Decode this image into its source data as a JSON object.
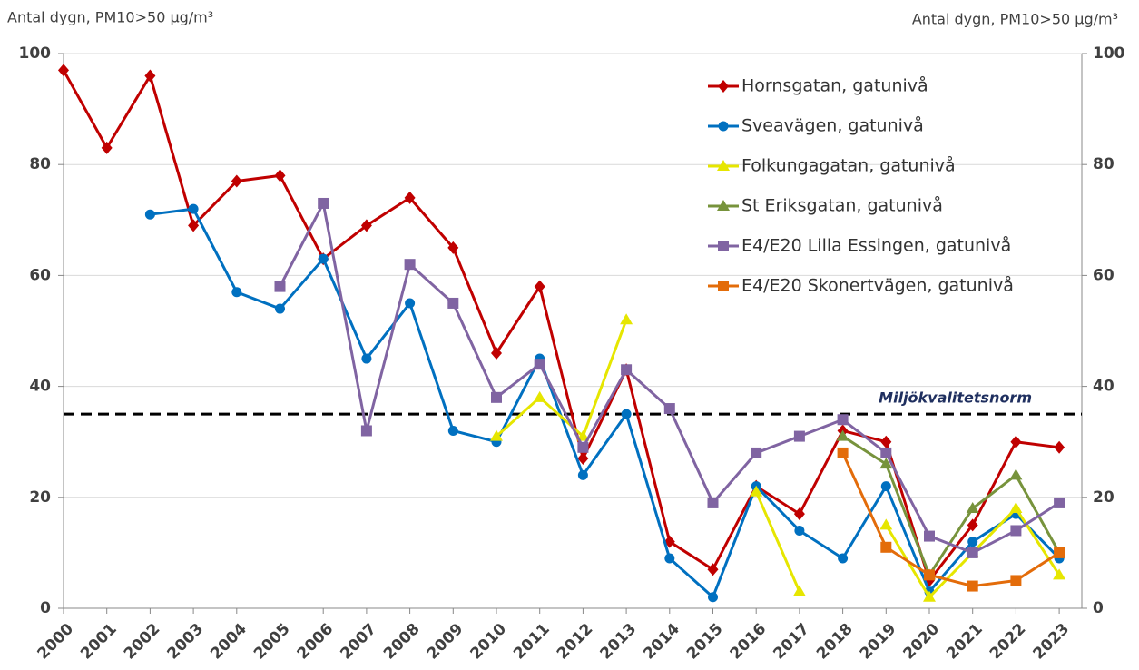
{
  "chart_data": {
    "type": "line",
    "y_label": "Antal dygn, PM10>50 µg/m³",
    "y2_label": "Antal dygn, PM10>50 µg/m³",
    "categories": [
      "2000",
      "2001",
      "2002",
      "2003",
      "2004",
      "2005",
      "2006",
      "2007",
      "2008",
      "2009",
      "2010",
      "2011",
      "2012",
      "2013",
      "2014",
      "2015",
      "2016",
      "2017",
      "2018",
      "2019",
      "2020",
      "2021",
      "2022",
      "2023"
    ],
    "ylim": [
      0,
      100
    ],
    "yticks": [
      0,
      20,
      40,
      60,
      80,
      100
    ],
    "y2lim": [
      0,
      100
    ],
    "y2ticks": [
      0,
      20,
      40,
      60,
      80,
      100
    ],
    "grid": true,
    "legend": "top-right",
    "reference_line": {
      "value": 35,
      "label": "Miljökvalitetsnorm",
      "color": "#000000"
    },
    "series": [
      {
        "name": "Hornsgatan, gatunivå",
        "color": "#c00000",
        "marker": "diamond",
        "values": [
          97,
          83,
          96,
          69,
          77,
          78,
          63,
          69,
          74,
          65,
          46,
          58,
          27,
          43,
          12,
          7,
          22,
          17,
          32,
          30,
          5,
          15,
          30,
          29
        ]
      },
      {
        "name": "Sveavägen, gatunivå",
        "color": "#0070c0",
        "marker": "circle",
        "values": [
          null,
          null,
          71,
          72,
          57,
          54,
          63,
          45,
          55,
          32,
          30,
          45,
          24,
          35,
          9,
          2,
          22,
          14,
          9,
          22,
          3,
          12,
          17,
          9
        ]
      },
      {
        "name": "Folkungagatan, gatunivå",
        "color": "#e6e600",
        "marker": "triangle",
        "values": [
          null,
          null,
          null,
          null,
          null,
          null,
          null,
          null,
          null,
          null,
          31,
          38,
          31,
          52,
          null,
          null,
          21,
          3,
          null,
          15,
          2,
          10,
          18,
          6
        ]
      },
      {
        "name": "St Eriksgatan, gatunivå",
        "color": "#77933c",
        "marker": "triangle",
        "values": [
          null,
          null,
          null,
          null,
          null,
          null,
          null,
          null,
          null,
          null,
          null,
          null,
          null,
          null,
          null,
          null,
          null,
          null,
          31,
          26,
          6,
          18,
          24,
          10
        ]
      },
      {
        "name": "E4/E20 Lilla Essingen, gatunivå",
        "color": "#8064a2",
        "marker": "square",
        "values": [
          null,
          null,
          null,
          null,
          null,
          58,
          73,
          32,
          62,
          55,
          38,
          44,
          29,
          43,
          36,
          19,
          28,
          31,
          34,
          28,
          13,
          10,
          14,
          19
        ]
      },
      {
        "name": "E4/E20 Skonertvägen, gatunivå",
        "color": "#e36c0a",
        "marker": "square",
        "values": [
          null,
          null,
          null,
          null,
          null,
          null,
          null,
          null,
          null,
          null,
          null,
          null,
          null,
          null,
          null,
          null,
          null,
          null,
          28,
          11,
          6,
          4,
          5,
          10
        ]
      }
    ]
  }
}
